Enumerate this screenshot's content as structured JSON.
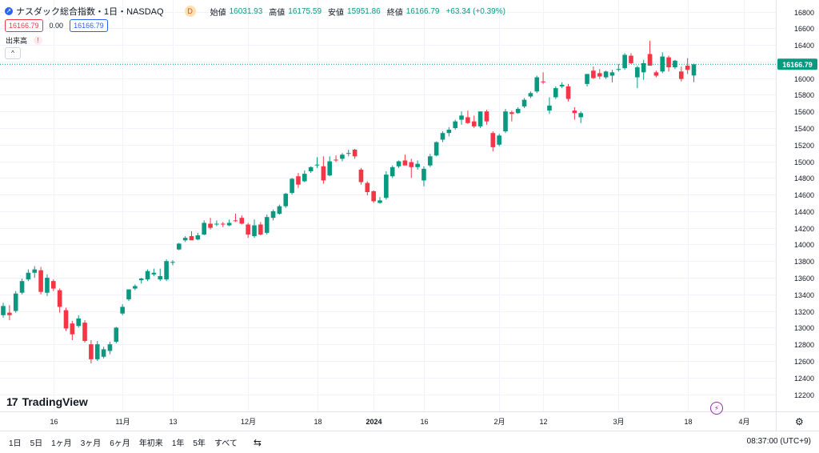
{
  "legend": {
    "symbol_icon": "arrow-icon",
    "title": "ナスダック総合指数・1日・NASDAQ",
    "data_badge": "D",
    "open_label": "始値",
    "open_value": "16031.93",
    "high_label": "高値",
    "high_value": "16175.59",
    "low_label": "安値",
    "low_value": "15951.86",
    "close_label": "終値",
    "close_value": "16166.79",
    "change": "+63.34 (+0.39%)"
  },
  "price_row": {
    "sell": "16166.79",
    "spread": "0.00",
    "buy": "16166.79"
  },
  "volume": {
    "label": "出来高",
    "warning": "!"
  },
  "collapse": "^",
  "logo": {
    "mark": "17",
    "name": "TradingView"
  },
  "bolt": "⚡",
  "settings_icon": "⚙",
  "bottom_bar": {
    "timeframes": [
      "1日",
      "5日",
      "1ヶ月",
      "3ヶ月",
      "6ヶ月",
      "年初来",
      "1年",
      "5年",
      "すべて"
    ],
    "range_icon": "⇆",
    "clock": "08:37:00 (UTC+9)"
  },
  "colors": {
    "up": "#089981",
    "down": "#f23645",
    "last_line": "#089981"
  },
  "chart_data": {
    "type": "candlestick",
    "symbol": "ナスダック総合指数",
    "interval": "1日",
    "ylim": [
      12200,
      16800
    ],
    "y_ticks": [
      12200,
      12400,
      12600,
      12800,
      13000,
      13200,
      13400,
      13600,
      13800,
      14000,
      14200,
      14400,
      14600,
      14800,
      15000,
      15200,
      15400,
      15600,
      15800,
      16000,
      16200,
      16400,
      16600,
      16800
    ],
    "x_ticks": [
      {
        "index": 8,
        "label": "16"
      },
      {
        "index": 19,
        "label": "11月"
      },
      {
        "index": 27,
        "label": "13"
      },
      {
        "index": 39,
        "label": "12月"
      },
      {
        "index": 50,
        "label": "18"
      },
      {
        "index": 59,
        "label": "2024"
      },
      {
        "index": 67,
        "label": "16"
      },
      {
        "index": 79,
        "label": "2月"
      },
      {
        "index": 86,
        "label": "12"
      },
      {
        "index": 98,
        "label": "3月"
      },
      {
        "index": 109,
        "label": "18"
      },
      {
        "index": 118,
        "label": "4月"
      }
    ],
    "last_price": 16166.79,
    "candles": [
      {
        "o": 13150,
        "h": 13300,
        "l": 13120,
        "c": 13260
      },
      {
        "o": 13180,
        "h": 13270,
        "l": 13090,
        "c": 13150
      },
      {
        "o": 13200,
        "h": 13440,
        "l": 13180,
        "c": 13410
      },
      {
        "o": 13420,
        "h": 13590,
        "l": 13400,
        "c": 13560
      },
      {
        "o": 13580,
        "h": 13700,
        "l": 13560,
        "c": 13660
      },
      {
        "o": 13660,
        "h": 13740,
        "l": 13600,
        "c": 13700
      },
      {
        "o": 13690,
        "h": 13730,
        "l": 13400,
        "c": 13430
      },
      {
        "o": 13420,
        "h": 13640,
        "l": 13380,
        "c": 13600
      },
      {
        "o": 13560,
        "h": 13580,
        "l": 13440,
        "c": 13470
      },
      {
        "o": 13450,
        "h": 13470,
        "l": 13180,
        "c": 13250
      },
      {
        "o": 13210,
        "h": 13240,
        "l": 12960,
        "c": 12990
      },
      {
        "o": 13050,
        "h": 13080,
        "l": 12850,
        "c": 12920
      },
      {
        "o": 13020,
        "h": 13150,
        "l": 13000,
        "c": 13110
      },
      {
        "o": 13060,
        "h": 13090,
        "l": 12820,
        "c": 12840
      },
      {
        "o": 12800,
        "h": 12850,
        "l": 12570,
        "c": 12620
      },
      {
        "o": 12620,
        "h": 12840,
        "l": 12600,
        "c": 12800
      },
      {
        "o": 12650,
        "h": 12770,
        "l": 12630,
        "c": 12740
      },
      {
        "o": 12720,
        "h": 12830,
        "l": 12680,
        "c": 12800
      },
      {
        "o": 12830,
        "h": 13010,
        "l": 12810,
        "c": 13000
      },
      {
        "o": 13170,
        "h": 13280,
        "l": 13150,
        "c": 13250
      },
      {
        "o": 13340,
        "h": 13460,
        "l": 13320,
        "c": 13460
      },
      {
        "o": 13470,
        "h": 13520,
        "l": 13450,
        "c": 13500
      },
      {
        "o": 13570,
        "h": 13600,
        "l": 13530,
        "c": 13590
      },
      {
        "o": 13580,
        "h": 13700,
        "l": 13560,
        "c": 13680
      },
      {
        "o": 13640,
        "h": 13710,
        "l": 13620,
        "c": 13660
      },
      {
        "o": 13580,
        "h": 13710,
        "l": 13560,
        "c": 13620
      },
      {
        "o": 13580,
        "h": 13820,
        "l": 13560,
        "c": 13800
      },
      {
        "o": 13780,
        "h": 13810,
        "l": 13750,
        "c": 13790
      },
      {
        "o": 13940,
        "h": 14020,
        "l": 13930,
        "c": 14010
      },
      {
        "o": 14050,
        "h": 14100,
        "l": 14030,
        "c": 14080
      },
      {
        "o": 14100,
        "h": 14160,
        "l": 14050,
        "c": 14050
      },
      {
        "o": 14060,
        "h": 14140,
        "l": 14050,
        "c": 14110
      },
      {
        "o": 14120,
        "h": 14290,
        "l": 14110,
        "c": 14260
      },
      {
        "o": 14250,
        "h": 14320,
        "l": 14180,
        "c": 14200
      },
      {
        "o": 14240,
        "h": 14290,
        "l": 14220,
        "c": 14250
      },
      {
        "o": 14250,
        "h": 14270,
        "l": 14210,
        "c": 14240
      },
      {
        "o": 14230,
        "h": 14300,
        "l": 14220,
        "c": 14260
      },
      {
        "o": 14290,
        "h": 14370,
        "l": 14270,
        "c": 14280
      },
      {
        "o": 14320,
        "h": 14350,
        "l": 14240,
        "c": 14250
      },
      {
        "o": 14240,
        "h": 14260,
        "l": 14080,
        "c": 14120
      },
      {
        "o": 14100,
        "h": 14300,
        "l": 14080,
        "c": 14230
      },
      {
        "o": 14240,
        "h": 14270,
        "l": 14110,
        "c": 14120
      },
      {
        "o": 14140,
        "h": 14360,
        "l": 14120,
        "c": 14330
      },
      {
        "o": 14320,
        "h": 14420,
        "l": 14290,
        "c": 14400
      },
      {
        "o": 14370,
        "h": 14480,
        "l": 14360,
        "c": 14460
      },
      {
        "o": 14460,
        "h": 14620,
        "l": 14440,
        "c": 14610
      },
      {
        "o": 14620,
        "h": 14800,
        "l": 14600,
        "c": 14790
      },
      {
        "o": 14820,
        "h": 14860,
        "l": 14680,
        "c": 14720
      },
      {
        "o": 14760,
        "h": 14890,
        "l": 14750,
        "c": 14850
      },
      {
        "o": 14880,
        "h": 14940,
        "l": 14860,
        "c": 14930
      },
      {
        "o": 14950,
        "h": 15050,
        "l": 14920,
        "c": 14960
      },
      {
        "o": 14940,
        "h": 15060,
        "l": 14730,
        "c": 14770
      },
      {
        "o": 14830,
        "h": 15060,
        "l": 14820,
        "c": 15000
      },
      {
        "o": 15020,
        "h": 15070,
        "l": 14990,
        "c": 15010
      },
      {
        "o": 15030,
        "h": 15100,
        "l": 15000,
        "c": 15080
      },
      {
        "o": 15090,
        "h": 15140,
        "l": 15060,
        "c": 15100
      },
      {
        "o": 15140,
        "h": 15150,
        "l": 15030,
        "c": 15060
      },
      {
        "o": 14900,
        "h": 14920,
        "l": 14720,
        "c": 14750
      },
      {
        "o": 14740,
        "h": 14760,
        "l": 14590,
        "c": 14630
      },
      {
        "o": 14640,
        "h": 14650,
        "l": 14500,
        "c": 14520
      },
      {
        "o": 14500,
        "h": 14570,
        "l": 14490,
        "c": 14530
      },
      {
        "o": 14560,
        "h": 14880,
        "l": 14540,
        "c": 14840
      },
      {
        "o": 14820,
        "h": 14950,
        "l": 14800,
        "c": 14930
      },
      {
        "o": 14940,
        "h": 15010,
        "l": 14920,
        "c": 15000
      },
      {
        "o": 15010,
        "h": 15080,
        "l": 14980,
        "c": 14950
      },
      {
        "o": 14990,
        "h": 15030,
        "l": 14800,
        "c": 14930
      },
      {
        "o": 14930,
        "h": 15010,
        "l": 14900,
        "c": 14970
      },
      {
        "o": 14770,
        "h": 14940,
        "l": 14700,
        "c": 14910
      },
      {
        "o": 14950,
        "h": 15090,
        "l": 14930,
        "c": 15060
      },
      {
        "o": 15070,
        "h": 15240,
        "l": 15060,
        "c": 15230
      },
      {
        "o": 15260,
        "h": 15360,
        "l": 15230,
        "c": 15340
      },
      {
        "o": 15340,
        "h": 15410,
        "l": 15300,
        "c": 15380
      },
      {
        "o": 15400,
        "h": 15500,
        "l": 15380,
        "c": 15480
      },
      {
        "o": 15500,
        "h": 15600,
        "l": 15440,
        "c": 15550
      },
      {
        "o": 15530,
        "h": 15610,
        "l": 15450,
        "c": 15460
      },
      {
        "o": 15480,
        "h": 15550,
        "l": 15400,
        "c": 15420
      },
      {
        "o": 15420,
        "h": 15600,
        "l": 15400,
        "c": 15600
      },
      {
        "o": 15600,
        "h": 15620,
        "l": 15440,
        "c": 15480
      },
      {
        "o": 15340,
        "h": 15360,
        "l": 15120,
        "c": 15170
      },
      {
        "o": 15200,
        "h": 15330,
        "l": 15180,
        "c": 15310
      },
      {
        "o": 15360,
        "h": 15630,
        "l": 15340,
        "c": 15600
      },
      {
        "o": 15590,
        "h": 15610,
        "l": 15480,
        "c": 15570
      },
      {
        "o": 15580,
        "h": 15650,
        "l": 15570,
        "c": 15630
      },
      {
        "o": 15660,
        "h": 15760,
        "l": 15640,
        "c": 15740
      },
      {
        "o": 15780,
        "h": 15840,
        "l": 15760,
        "c": 15820
      },
      {
        "o": 15840,
        "h": 16030,
        "l": 15820,
        "c": 16010
      },
      {
        "o": 15960,
        "h": 16070,
        "l": 15930,
        "c": 15950
      },
      {
        "o": 15610,
        "h": 15770,
        "l": 15570,
        "c": 15670
      },
      {
        "o": 15770,
        "h": 15900,
        "l": 15750,
        "c": 15880
      },
      {
        "o": 15900,
        "h": 15950,
        "l": 15880,
        "c": 15920
      },
      {
        "o": 15900,
        "h": 15930,
        "l": 15720,
        "c": 15750
      },
      {
        "o": 15610,
        "h": 15650,
        "l": 15500,
        "c": 15580
      },
      {
        "o": 15530,
        "h": 15600,
        "l": 15460,
        "c": 15580
      },
      {
        "o": 15930,
        "h": 16050,
        "l": 15900,
        "c": 16050
      },
      {
        "o": 16090,
        "h": 16140,
        "l": 15990,
        "c": 16000
      },
      {
        "o": 16060,
        "h": 16110,
        "l": 15990,
        "c": 16020
      },
      {
        "o": 16010,
        "h": 16090,
        "l": 15990,
        "c": 16080
      },
      {
        "o": 16030,
        "h": 16100,
        "l": 15950,
        "c": 16070
      },
      {
        "o": 16100,
        "h": 16170,
        "l": 16080,
        "c": 16110
      },
      {
        "o": 16120,
        "h": 16300,
        "l": 16100,
        "c": 16280
      },
      {
        "o": 16270,
        "h": 16300,
        "l": 16170,
        "c": 16180
      },
      {
        "o": 16010,
        "h": 16150,
        "l": 15880,
        "c": 16130
      },
      {
        "o": 16070,
        "h": 16220,
        "l": 15980,
        "c": 16180
      },
      {
        "o": 16290,
        "h": 16450,
        "l": 16150,
        "c": 16150
      },
      {
        "o": 16070,
        "h": 16090,
        "l": 16010,
        "c": 16030
      },
      {
        "o": 16080,
        "h": 16310,
        "l": 16060,
        "c": 16260
      },
      {
        "o": 16250,
        "h": 16270,
        "l": 16080,
        "c": 16130
      },
      {
        "o": 16130,
        "h": 16220,
        "l": 16110,
        "c": 16210
      },
      {
        "o": 16080,
        "h": 16140,
        "l": 15960,
        "c": 15990
      },
      {
        "o": 16150,
        "h": 16240,
        "l": 16050,
        "c": 16100
      },
      {
        "o": 16031.93,
        "h": 16175.59,
        "l": 15951.86,
        "c": 16166.79
      }
    ]
  }
}
